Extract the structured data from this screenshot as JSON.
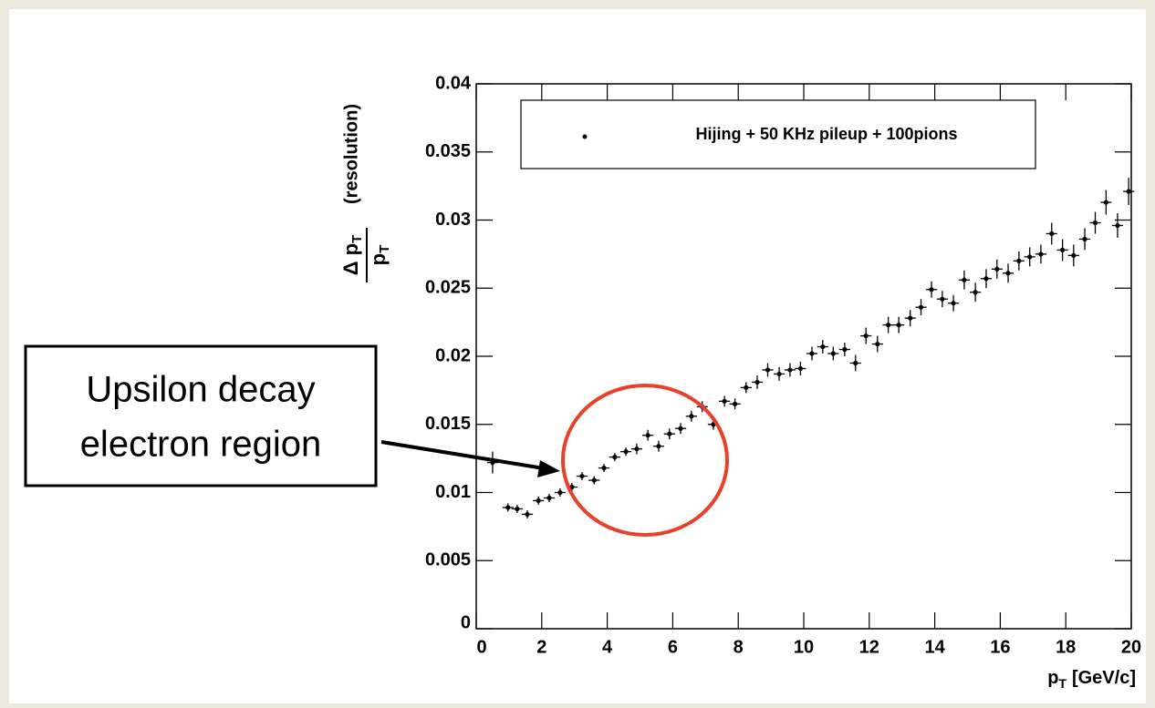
{
  "chart_data": {
    "type": "errorbar",
    "legend": "Hijing + 50 KHz pileup + 100pions",
    "x_label": {
      "main": "p",
      "sub": "T",
      "unit": "[GeV/c]"
    },
    "y_label": {
      "numerator": "Δ p",
      "numerator_sub": "T",
      "denominator": "p",
      "denominator_sub": "T",
      "note": "(resolution)"
    },
    "annotation": [
      "Upsilon decay",
      "electron region"
    ],
    "color": "#000000",
    "xlim": [
      0,
      20
    ],
    "ylim": [
      0,
      0.04
    ],
    "xticks": [
      0,
      2,
      4,
      6,
      8,
      10,
      12,
      14,
      16,
      18,
      20
    ],
    "yticks": [
      0,
      0.005,
      0.01,
      0.015,
      0.02,
      0.025,
      0.03,
      0.035,
      0.04
    ],
    "xerr": 0.17,
    "x": [
      0.5,
      0.97,
      1.25,
      1.56,
      1.9,
      2.23,
      2.56,
      2.92,
      3.23,
      3.6,
      3.9,
      4.23,
      4.57,
      4.9,
      5.24,
      5.57,
      5.9,
      6.24,
      6.57,
      6.9,
      7.24,
      7.58,
      7.9,
      8.24,
      8.58,
      8.9,
      9.25,
      9.58,
      9.9,
      10.25,
      10.58,
      10.9,
      11.25,
      11.58,
      11.9,
      12.25,
      12.58,
      12.9,
      13.25,
      13.58,
      13.9,
      14.23,
      14.57,
      14.9,
      15.24,
      15.57,
      15.9,
      16.24,
      16.57,
      16.9,
      17.24,
      17.57,
      17.9,
      18.24,
      18.58,
      18.9,
      19.23,
      19.58,
      19.92
    ],
    "values": [
      0.0122,
      0.0089,
      0.0088,
      0.0084,
      0.0094,
      0.0096,
      0.01,
      0.0104,
      0.0112,
      0.0109,
      0.0118,
      0.0126,
      0.013,
      0.0132,
      0.0142,
      0.0134,
      0.0143,
      0.0147,
      0.0156,
      0.0163,
      0.015,
      0.0167,
      0.0165,
      0.0177,
      0.0181,
      0.019,
      0.0187,
      0.019,
      0.0191,
      0.0202,
      0.0207,
      0.0202,
      0.0205,
      0.0195,
      0.0215,
      0.0209,
      0.0223,
      0.0223,
      0.0228,
      0.0236,
      0.0249,
      0.0242,
      0.0239,
      0.0256,
      0.0247,
      0.0257,
      0.0264,
      0.0261,
      0.027,
      0.0273,
      0.0275,
      0.029,
      0.0278,
      0.0274,
      0.0286,
      0.0298,
      0.0313,
      0.0296,
      0.0321
    ],
    "yerr": [
      0.0008,
      0.0003,
      0.0003,
      0.0003,
      0.0003,
      0.0003,
      0.0003,
      0.0003,
      0.0003,
      0.0003,
      0.0003,
      0.0003,
      0.0003,
      0.0004,
      0.0004,
      0.0004,
      0.0004,
      0.0004,
      0.0004,
      0.0004,
      0.0004,
      0.0004,
      0.0004,
      0.0004,
      0.0005,
      0.0005,
      0.0005,
      0.0005,
      0.0005,
      0.0005,
      0.0005,
      0.0005,
      0.0005,
      0.0006,
      0.0006,
      0.0006,
      0.0006,
      0.0006,
      0.0006,
      0.0006,
      0.0006,
      0.0006,
      0.0006,
      0.0007,
      0.0007,
      0.0007,
      0.0007,
      0.0007,
      0.0007,
      0.0007,
      0.0007,
      0.0008,
      0.0008,
      0.0008,
      0.0008,
      0.0008,
      0.0009,
      0.0009,
      0.001
    ]
  }
}
